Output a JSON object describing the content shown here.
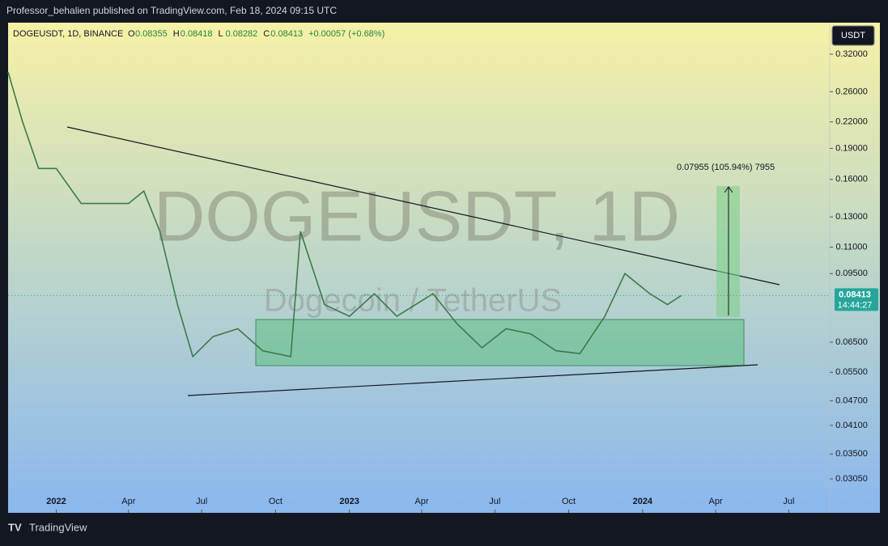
{
  "header": {
    "published": "Professor_behalien published on TradingView.com, Feb 18, 2024 09:15 UTC",
    "currency_button": "USDT",
    "footer_brand": "TradingView"
  },
  "chart_data": {
    "type": "line",
    "title": "DOGEUSDT, 1D, BINANCE",
    "ohlc": [
      {
        "key": "O",
        "value": "0.08355"
      },
      {
        "key": "H",
        "value": "0.08418"
      },
      {
        "key": "L",
        "value": "0.08282"
      },
      {
        "key": "C",
        "value": "0.08413"
      },
      {
        "key": "change",
        "value": "+0.00057 (+0.68%)"
      }
    ],
    "watermark": "DOGEUSDT, 1D",
    "watermark_subtitle": "Dogecoin / TetherUS",
    "measure_label": "0.07955 (105.94%) 7955",
    "last_price": 0.08413,
    "countdown": "14:44:27",
    "color": "#3d7a4a",
    "log_scale": true,
    "x": [
      "2021-11-02",
      "2021-11-20",
      "2021-12-10",
      "2022-01-01",
      "2022-02-01",
      "2022-03-01",
      "2022-04-01",
      "2022-04-20",
      "2022-05-10",
      "2022-06-01",
      "2022-06-20",
      "2022-07-15",
      "2022-08-15",
      "2022-09-15",
      "2022-10-20",
      "2022-11-01",
      "2022-12-01",
      "2023-01-01",
      "2023-02-01",
      "2023-03-01",
      "2023-04-15",
      "2023-05-15",
      "2023-06-15",
      "2023-07-15",
      "2023-08-15",
      "2023-09-15",
      "2023-10-15",
      "2023-11-15",
      "2023-12-10",
      "2024-01-10",
      "2024-02-01",
      "2024-02-18"
    ],
    "values": [
      0.29,
      0.22,
      0.17,
      0.17,
      0.14,
      0.14,
      0.14,
      0.15,
      0.12,
      0.08,
      0.06,
      0.067,
      0.07,
      0.062,
      0.06,
      0.12,
      0.08,
      0.075,
      0.085,
      0.075,
      0.085,
      0.072,
      0.063,
      0.07,
      0.068,
      0.062,
      0.061,
      0.075,
      0.095,
      0.085,
      0.08,
      0.08413
    ],
    "xlim": [
      "2021-11-02",
      "2024-08-21"
    ],
    "xticks": [
      {
        "value": "2022-01-01",
        "label": "2022"
      },
      {
        "value": "2022-04-01",
        "label": "Apr"
      },
      {
        "value": "2022-07-01",
        "label": "Jul"
      },
      {
        "value": "2022-10-01",
        "label": "Oct"
      },
      {
        "value": "2023-01-01",
        "label": "2023"
      },
      {
        "value": "2023-04-01",
        "label": "Apr"
      },
      {
        "value": "2023-07-01",
        "label": "Jul"
      },
      {
        "value": "2023-10-01",
        "label": "Oct"
      },
      {
        "value": "2024-01-01",
        "label": "2024"
      },
      {
        "value": "2024-04-01",
        "label": "Apr"
      },
      {
        "value": "2024-07-01",
        "label": "Jul"
      }
    ],
    "ylim": [
      0.0255,
      0.381
    ],
    "yticks": [
      {
        "value": 0.32,
        "label": "0.32000"
      },
      {
        "value": 0.26,
        "label": "0.26000"
      },
      {
        "value": 0.22,
        "label": "0.22000"
      },
      {
        "value": 0.19,
        "label": "0.19000"
      },
      {
        "value": 0.16,
        "label": "0.16000"
      },
      {
        "value": 0.13,
        "label": "0.13000"
      },
      {
        "value": 0.11,
        "label": "0.11000"
      },
      {
        "value": 0.095,
        "label": "0.09500"
      },
      {
        "value": 0.065,
        "label": "0.06500"
      },
      {
        "value": 0.055,
        "label": "0.05500"
      },
      {
        "value": 0.047,
        "label": "0.04700"
      },
      {
        "value": 0.041,
        "label": "0.04100"
      },
      {
        "value": 0.035,
        "label": "0.03500"
      },
      {
        "value": 0.0305,
        "label": "0.03050"
      }
    ]
  }
}
